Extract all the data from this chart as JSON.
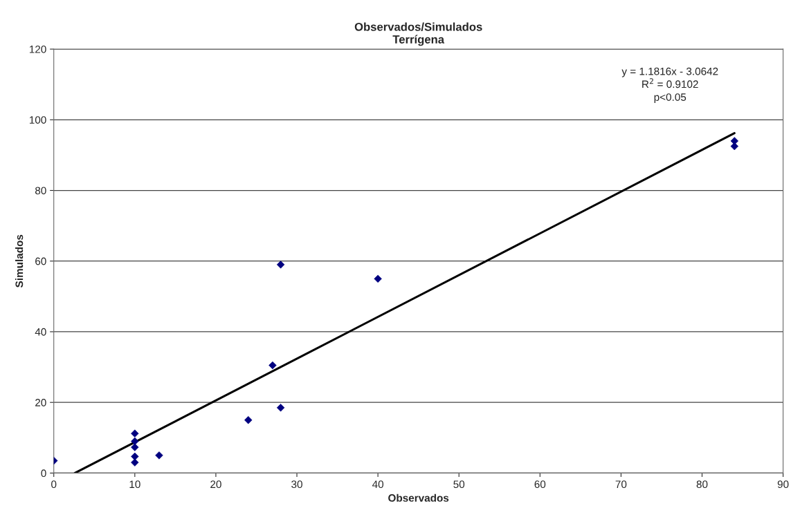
{
  "chart_data": {
    "type": "scatter",
    "title": "Observados/Simulados\nTerrígena",
    "xlabel": "Observados",
    "ylabel": "Simulados",
    "series": [
      {
        "color": "#000080",
        "marker": "diamond",
        "x": [
          0,
          10,
          10,
          10,
          10,
          10,
          13,
          24,
          27,
          28,
          28,
          40,
          84,
          84
        ],
        "values": [
          3.5,
          3,
          4.7,
          7.3,
          9,
          11.2,
          5,
          15,
          30.5,
          59,
          18.5,
          55,
          94,
          92.5
        ]
      },
      {
        "type": "line",
        "color": "#000000",
        "marker": "none",
        "x": [
          2.6,
          84
        ],
        "values": [
          0,
          96.2
        ]
      }
    ],
    "annotations": [
      "y = 1.1816x - 3.0642\nR$^{2}$ = 0.9102\np<0.05"
    ],
    "xlim": [
      0,
      90
    ],
    "xticks": [
      0,
      10,
      20,
      30,
      40,
      50,
      60,
      70,
      80,
      90
    ],
    "ylim": [
      0,
      120
    ],
    "yticks": [
      0,
      20,
      40,
      60,
      80,
      100,
      120
    ],
    "grid": "y",
    "legend": false
  }
}
